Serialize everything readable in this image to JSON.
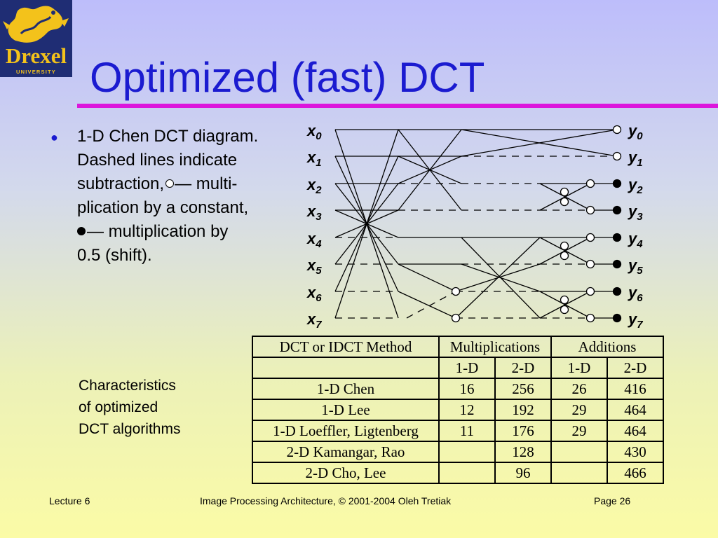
{
  "logo": {
    "wordmark": "Drexel",
    "subtitle": "UNIVERSITY",
    "colors": {
      "background": "#1f2d74",
      "gold": "#f3c21b"
    }
  },
  "title": "Optimized (fast) DCT",
  "bullet": {
    "line1": "1-D Chen DCT diagram.",
    "line2": "Dashed lines indicate",
    "line3a": "subtraction,",
    "line3b": "— multi-",
    "line4": "plication by a constant,",
    "line5": "— multiplication by",
    "line6": "0.5 (shift)."
  },
  "diagram": {
    "inputs": [
      {
        "base": "x",
        "sub": "0"
      },
      {
        "base": "x",
        "sub": "1"
      },
      {
        "base": "x",
        "sub": "2"
      },
      {
        "base": "x",
        "sub": "3"
      },
      {
        "base": "x",
        "sub": "4"
      },
      {
        "base": "x",
        "sub": "5"
      },
      {
        "base": "x",
        "sub": "6"
      },
      {
        "base": "x",
        "sub": "7"
      }
    ],
    "outputs": [
      {
        "base": "y",
        "sub": "0"
      },
      {
        "base": "y",
        "sub": "1"
      },
      {
        "base": "y",
        "sub": "2"
      },
      {
        "base": "y",
        "sub": "3"
      },
      {
        "base": "y",
        "sub": "4"
      },
      {
        "base": "y",
        "sub": "5"
      },
      {
        "base": "y",
        "sub": "6"
      },
      {
        "base": "y",
        "sub": "7"
      }
    ]
  },
  "caption": {
    "line1": "Characteristics",
    "line2": "of optimized",
    "line3": "DCT algorithms"
  },
  "table": {
    "headers": [
      "DCT or IDCT Method",
      "Multiplications",
      "Additions"
    ],
    "subheaders": [
      "",
      "1-D",
      "2-D",
      "1-D",
      "2-D"
    ],
    "rows": [
      [
        "1-D Chen",
        "16",
        "256",
        "26",
        "416"
      ],
      [
        "1-D Lee",
        "12",
        "192",
        "29",
        "464"
      ],
      [
        "1-D Loeffler, Ligtenberg",
        "11",
        "176",
        "29",
        "464"
      ],
      [
        "2-D Kamangar, Rao",
        "",
        "128",
        "",
        "430"
      ],
      [
        "2-D Cho, Lee",
        "",
        "96",
        "",
        "466"
      ]
    ]
  },
  "footer": {
    "left": "Lecture 6",
    "center": "Image Processing Architecture, © 2001-2004  Oleh Tretiak",
    "right": "Page 26"
  },
  "colors": {
    "title": "#1b1bd0",
    "rule": "#dc16dc"
  }
}
